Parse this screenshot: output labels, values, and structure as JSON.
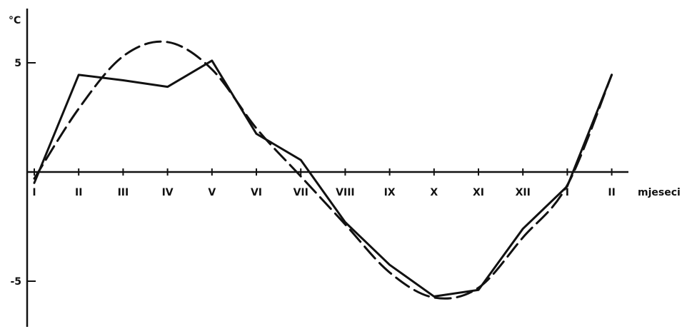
{
  "chart_data": {
    "type": "line",
    "ylabel": "°C",
    "xlabel": "mjeseci",
    "categories": [
      "I",
      "II",
      "III",
      "IV",
      "V",
      "VI",
      "VII",
      "VIII",
      "IX",
      "X",
      "XI",
      "XII",
      "I",
      "II"
    ],
    "ylim": [
      -7.1,
      7.3
    ],
    "yticks": [
      5,
      -5
    ],
    "grid": false,
    "series": [
      {
        "style": "solid",
        "color": "#111111",
        "values": [
          -0.5,
          4.45,
          4.2,
          3.9,
          5.1,
          1.75,
          0.55,
          -2.3,
          -4.25,
          -5.7,
          -5.4,
          -2.6,
          -0.65,
          4.45
        ]
      },
      {
        "style": "dashed",
        "color": "#111111",
        "values": [
          -0.3,
          2.9,
          5.3,
          5.95,
          4.7,
          2.0,
          -0.2,
          -2.4,
          -4.6,
          -5.75,
          -5.3,
          -3.0,
          -0.6,
          4.45
        ]
      }
    ]
  }
}
